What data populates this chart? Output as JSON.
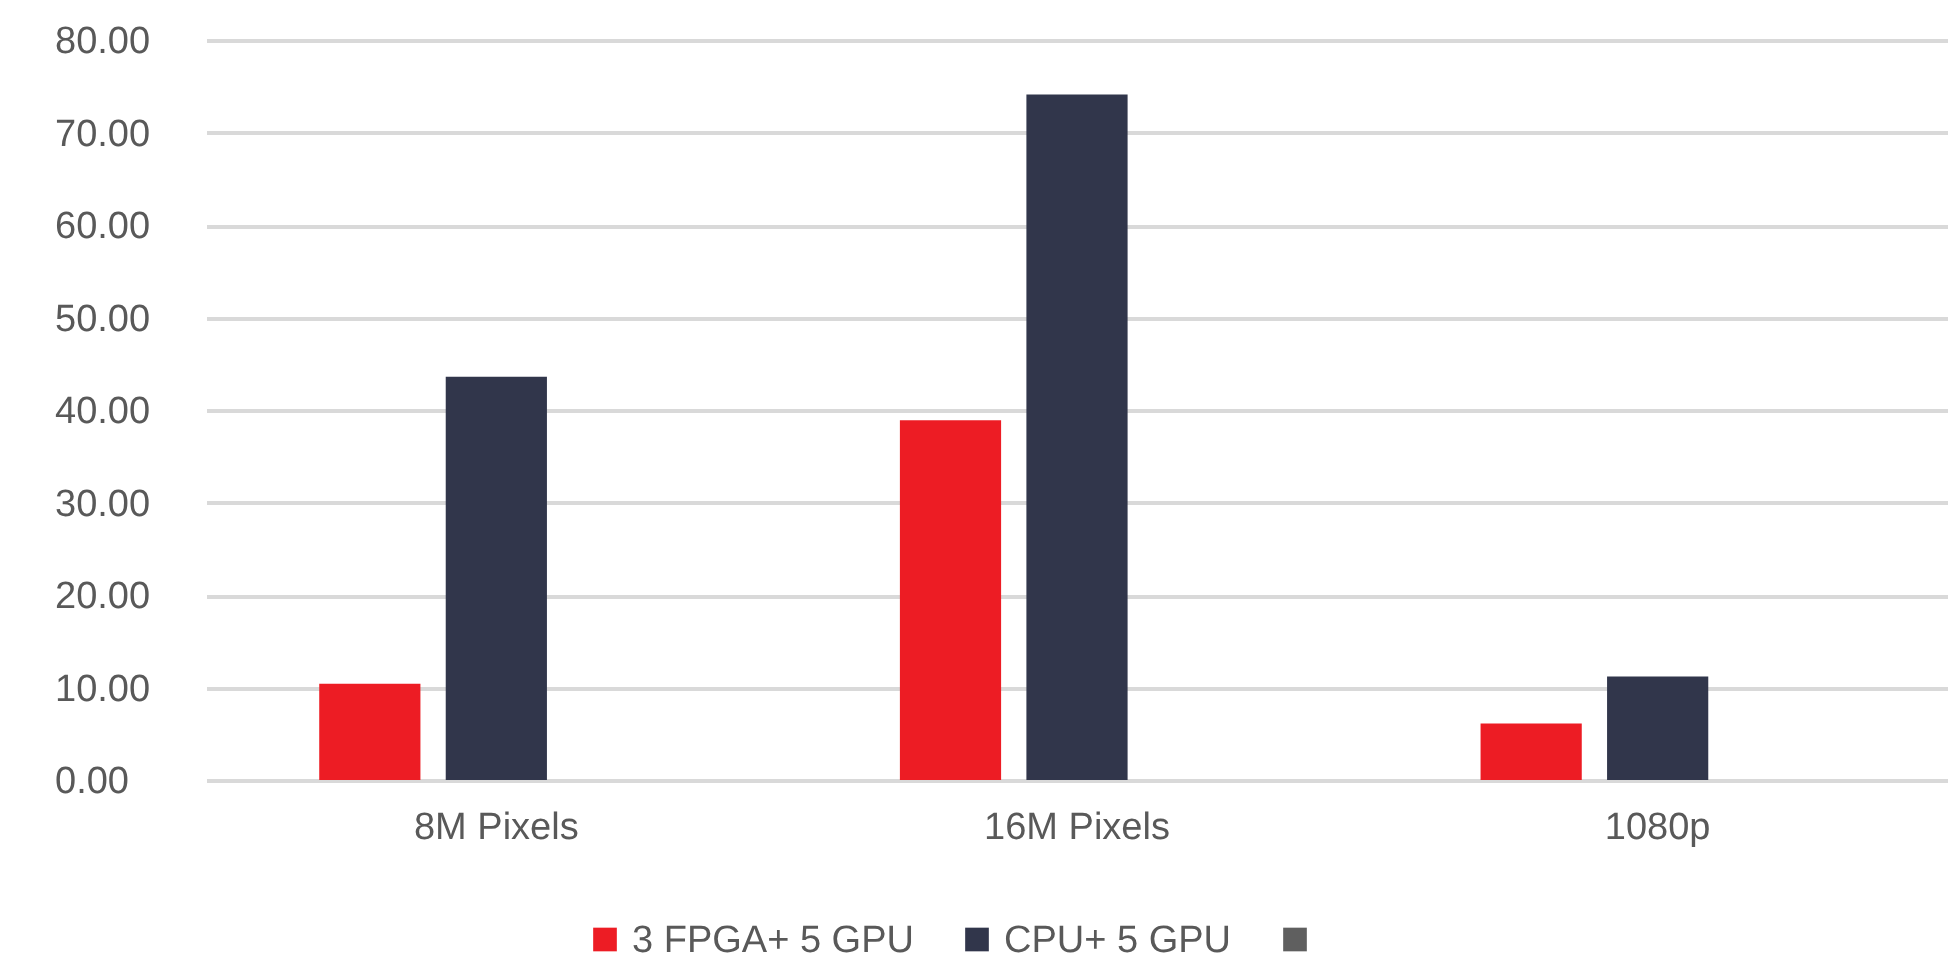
{
  "chart_data": {
    "type": "bar",
    "categories": [
      "8M Pixels",
      "16M Pixels",
      "1080p"
    ],
    "series": [
      {
        "name": "3 FPGA+ 5 GPU",
        "color": "#ed1c24",
        "values": [
          10.4,
          38.9,
          6.1
        ]
      },
      {
        "name": "CPU+ 5 GPU",
        "color": "#31364b",
        "values": [
          43.6,
          74.1,
          11.2
        ]
      },
      {
        "color": "#5f5f5f",
        "values": [
          null,
          null,
          null
        ]
      }
    ],
    "ylim": [
      0,
      80
    ],
    "yticks": [
      {
        "value": 0,
        "label": "0.00"
      },
      {
        "value": 10,
        "label": "10.00"
      },
      {
        "value": 20,
        "label": "20.00"
      },
      {
        "value": 30,
        "label": "30.00"
      },
      {
        "value": 40,
        "label": "40.00"
      },
      {
        "value": 50,
        "label": "50.00"
      },
      {
        "value": 60,
        "label": "60.00"
      },
      {
        "value": 70,
        "label": "70.00"
      },
      {
        "value": 80,
        "label": "80.00"
      }
    ],
    "grid": "y",
    "legend": "bottom"
  }
}
